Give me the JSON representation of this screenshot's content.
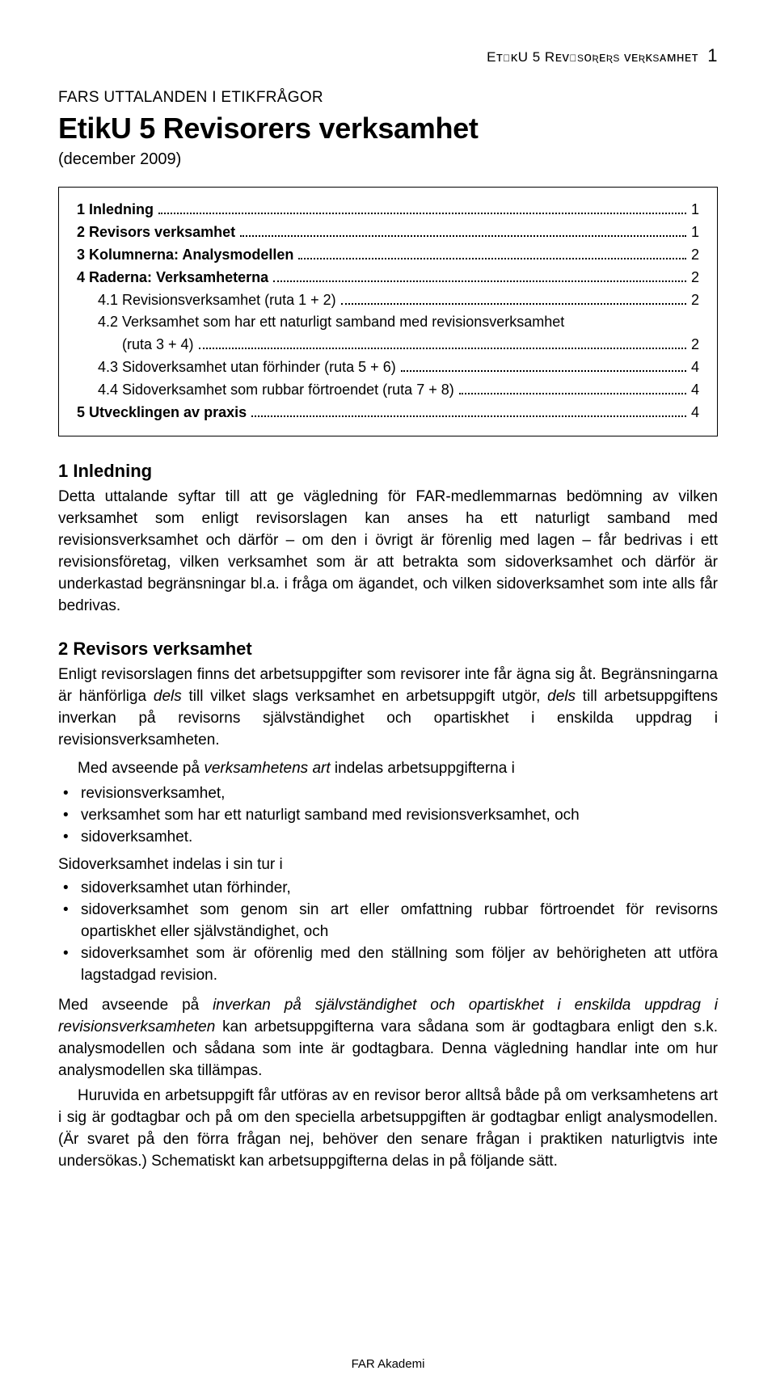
{
  "header": {
    "running_head": "EᴛɪᴋU 5  Rᴇᴠɪsᴏʀᴇʀs ᴠᴇʀᴋsᴀᴍʜᴇᴛ",
    "page_no": "1",
    "overline": "FARS UTTALANDEN I ETIKFRÅGOR",
    "title": "EtikU 5 Revisorers verksamhet",
    "date": "(december 2009)"
  },
  "toc": [
    {
      "label": "1  Inledning",
      "page": "1",
      "bold": true
    },
    {
      "label": "2  Revisors verksamhet",
      "page": "1",
      "bold": true
    },
    {
      "label": "3  Kolumnerna: Analysmodellen",
      "page": "2",
      "bold": true
    },
    {
      "label": "4  Raderna: Verksamheterna",
      "page": "2",
      "bold": true
    },
    {
      "label": "4.1  Revisionsverksamhet (ruta 1 + 2)",
      "page": "2",
      "bold": false,
      "sub": true
    },
    {
      "multiline": true,
      "line1": "4.2  Verksamhet som har ett naturligt samband med revisionsverksamhet",
      "line2": "(ruta 3 + 4)",
      "page": "2"
    },
    {
      "label": "4.3  Sidoverksamhet utan förhinder (ruta 5 + 6)",
      "page": "4",
      "bold": false,
      "sub": true
    },
    {
      "label": "4.4  Sidoverksamhet som rubbar förtroendet (ruta 7 + 8)",
      "page": "4",
      "bold": false,
      "sub": true
    },
    {
      "label": "5  Utvecklingen av praxis",
      "page": "4",
      "bold": true
    }
  ],
  "sections": {
    "s1": {
      "heading": "1  Inledning",
      "p1": "Detta uttalande syftar till att ge vägledning för FAR-medlemmarnas bedömning av vilken verksamhet som enligt revisorslagen kan anses ha ett naturligt samband med revisionsverksamhet och därför – om den i övrigt är förenlig med lagen – får bedrivas i ett revisionsföretag, vilken verksamhet som är att betrakta som sidoverksamhet och därför är underkastad begränsningar bl.a. i fråga om ägandet, och vilken sidoverksamhet som inte alls får bedrivas."
    },
    "s2": {
      "heading": "2  Revisors verksamhet",
      "p1_a": "Enligt revisorslagen finns det arbetsuppgifter som revisorer inte får ägna sig åt. Begränsningarna är hänförliga ",
      "p1_dels1": "dels",
      "p1_b": " till vilket slags verksamhet en arbetsuppgift utgör, ",
      "p1_dels2": "dels",
      "p1_c": " till arbetsuppgiftens inverkan på revisorns självständighet och opartiskhet i enskilda uppdrag i revisionsverksamheten.",
      "lead1_a": "Med avseende på ",
      "lead1_em": "verksamhetens art",
      "lead1_b": " indelas arbetsuppgifterna i",
      "list1": [
        "revisionsverksamhet,",
        "verksamhet som har ett naturligt samband med revisionsverksamhet, och",
        "sidoverksamhet."
      ],
      "lead2": "Sidoverksamhet indelas i sin tur i",
      "list2": [
        "sidoverksamhet utan förhinder,",
        "sidoverksamhet som genom sin art eller omfattning rubbar förtroendet för revisorns opartiskhet eller självständighet, och",
        "sidoverksamhet som är oförenlig med den ställning som följer av behörigheten att utföra lagstadgad revision."
      ],
      "p2_a": "Med avseende på ",
      "p2_em": "inverkan på självständighet och opartiskhet i enskilda uppdrag i revisionsverksamheten",
      "p2_b": " kan arbetsuppgifterna vara sådana som är godtagbara enligt den s.k. analysmodellen och sådana som inte är godtagbara. Denna vägledning handlar inte om hur analysmodellen ska tillämpas.",
      "p3": "Huruvida en arbetsuppgift får utföras av en revisor beror alltså både på om verksamhetens art i sig är godtagbar och på om den speciella arbetsuppgiften är godtagbar enligt analysmodellen. (Är svaret på den förra frågan nej, behöver den senare frågan i praktiken naturligtvis inte undersökas.) Schematiskt kan arbetsuppgifterna delas in på följande sätt."
    }
  },
  "footer": "FAR Akademi"
}
